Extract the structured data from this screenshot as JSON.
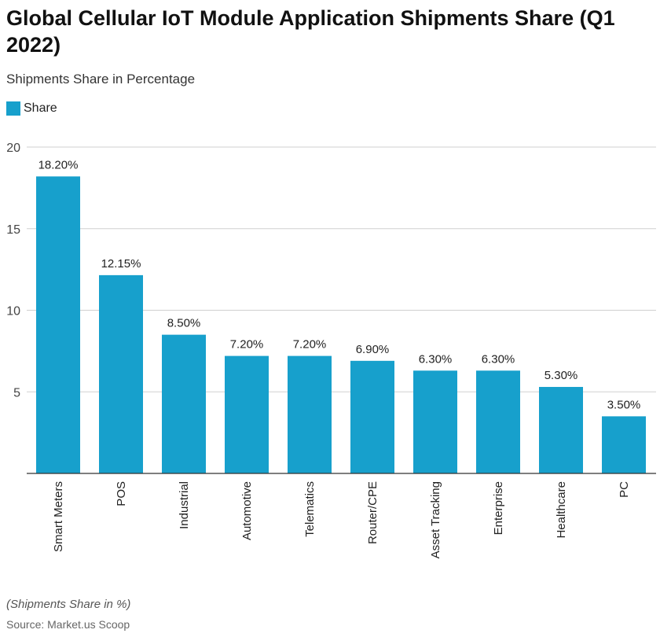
{
  "chart_data": {
    "type": "bar",
    "title": "Global Cellular IoT Module Application Shipments Share (Q1 2022)",
    "subtitle": "Shipments Share in Percentage",
    "categories": [
      "Smart Meters",
      "POS",
      "Industrial",
      "Automotive",
      "Telematics",
      "Router/CPE",
      "Asset Tracking",
      "Enterprise",
      "Healthcare",
      "PC"
    ],
    "series": [
      {
        "name": "Share",
        "values": [
          18.2,
          12.15,
          8.5,
          7.2,
          7.2,
          6.9,
          6.3,
          6.3,
          5.3,
          3.5
        ]
      }
    ],
    "data_labels": [
      "18.20%",
      "12.15%",
      "8.50%",
      "7.20%",
      "7.20%",
      "6.90%",
      "6.30%",
      "6.30%",
      "5.30%",
      "3.50%"
    ],
    "ylim": [
      0,
      20
    ],
    "yticks": [
      5,
      10,
      15,
      20
    ],
    "grid": true,
    "legend_position": "top-left",
    "color": "#17a0cc"
  },
  "footer": {
    "note": "(Shipments Share in %)",
    "source": "Source: Market.us Scoop"
  }
}
